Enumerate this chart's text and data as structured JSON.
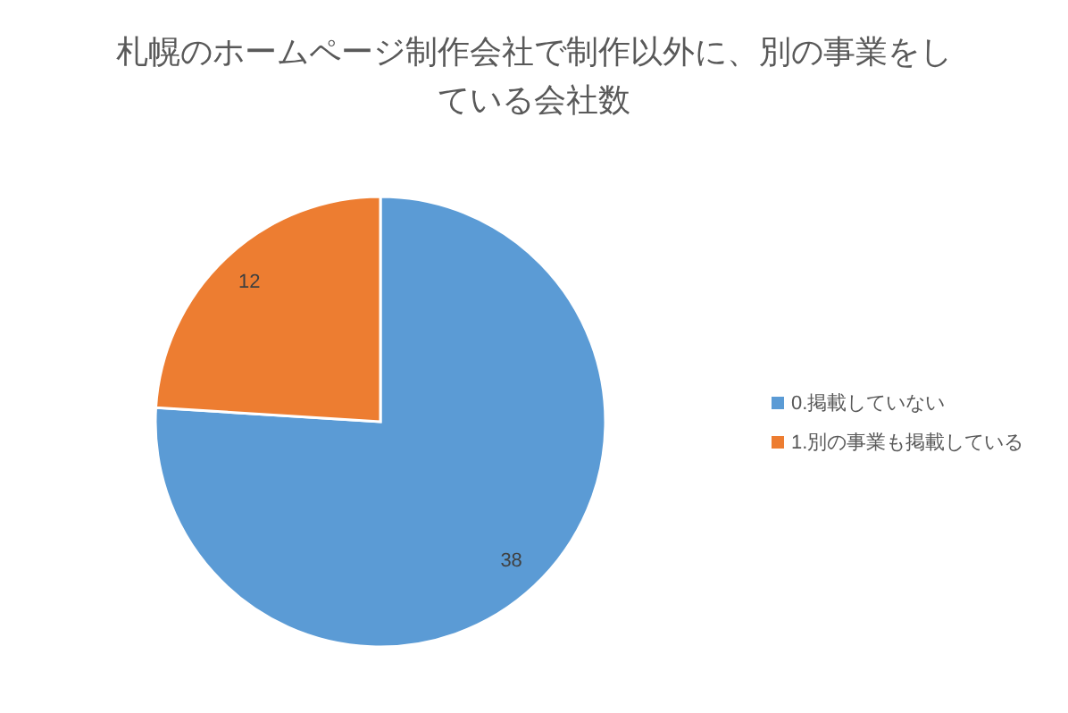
{
  "chart_data": {
    "type": "pie",
    "title": "札幌のホームページ制作会社で制作以外に、別の事業をしている会社数",
    "categories": [
      "0.掲載していない",
      "1.別の事業も掲載している"
    ],
    "values": [
      38,
      12
    ],
    "colors": [
      "#5b9bd5",
      "#ed7d31"
    ],
    "data_labels": true,
    "legend": "right"
  }
}
